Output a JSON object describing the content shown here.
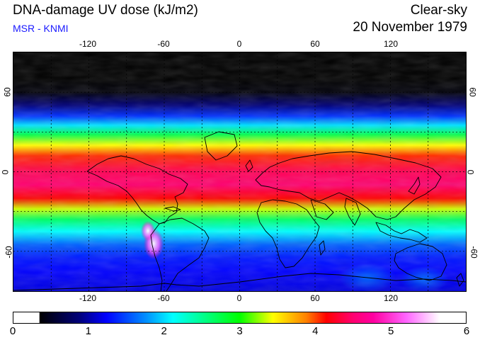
{
  "header": {
    "title": "DNA-damage UV dose (kJ/m2)",
    "subtitle": "MSR - KNMI",
    "sky_condition": "Clear-sky",
    "date": "20 November 1979"
  },
  "map": {
    "lon_ticks": [
      "-120",
      "-60",
      "0",
      "60",
      "120"
    ],
    "lat_ticks_left": [
      "60",
      "0",
      "-60"
    ],
    "lat_ticks_right": [
      "60",
      "0",
      "-60"
    ],
    "lon_range": [
      -180,
      180
    ],
    "lat_range": [
      -90,
      90
    ],
    "grid": true,
    "grid_lons": [
      -150,
      -120,
      -90,
      -60,
      -30,
      0,
      30,
      60,
      90,
      120,
      150
    ],
    "grid_lats": [
      -60,
      -30,
      0,
      30,
      60
    ],
    "zonal_profile": [
      {
        "lat": 90,
        "dose": 0.0
      },
      {
        "lat": 70,
        "dose": 0.0
      },
      {
        "lat": 60,
        "dose": 0.05
      },
      {
        "lat": 50,
        "dose": 0.6
      },
      {
        "lat": 42,
        "dose": 1.2
      },
      {
        "lat": 35,
        "dose": 1.9
      },
      {
        "lat": 28,
        "dose": 2.7
      },
      {
        "lat": 20,
        "dose": 3.5
      },
      {
        "lat": 12,
        "dose": 4.2
      },
      {
        "lat": 0,
        "dose": 4.6
      },
      {
        "lat": -10,
        "dose": 4.7
      },
      {
        "lat": -20,
        "dose": 4.3
      },
      {
        "lat": -28,
        "dose": 3.4
      },
      {
        "lat": -36,
        "dose": 2.6
      },
      {
        "lat": -45,
        "dose": 2.0
      },
      {
        "lat": -55,
        "dose": 1.4
      },
      {
        "lat": -65,
        "dose": 1.1
      },
      {
        "lat": -75,
        "dose": 1.0
      },
      {
        "lat": -90,
        "dose": 0.9
      }
    ]
  },
  "colorbar": {
    "labels": [
      "0",
      "1",
      "2",
      "3",
      "4",
      "5",
      "6"
    ],
    "min": 0,
    "max": 6,
    "colors": [
      {
        "v": 0.0,
        "c": "#000000"
      },
      {
        "v": 0.6,
        "c": "#00007a"
      },
      {
        "v": 1.0,
        "c": "#0000ff"
      },
      {
        "v": 1.6,
        "c": "#0090ff"
      },
      {
        "v": 2.0,
        "c": "#00ffff"
      },
      {
        "v": 2.5,
        "c": "#00ff80"
      },
      {
        "v": 3.0,
        "c": "#00ff00"
      },
      {
        "v": 3.5,
        "c": "#ffff00"
      },
      {
        "v": 4.0,
        "c": "#ff8000"
      },
      {
        "v": 4.3,
        "c": "#ff0000"
      },
      {
        "v": 4.7,
        "c": "#ff0070"
      },
      {
        "v": 5.0,
        "c": "#ff00a0"
      },
      {
        "v": 5.5,
        "c": "#ff66ff"
      },
      {
        "v": 6.0,
        "c": "#ffffff"
      }
    ]
  }
}
